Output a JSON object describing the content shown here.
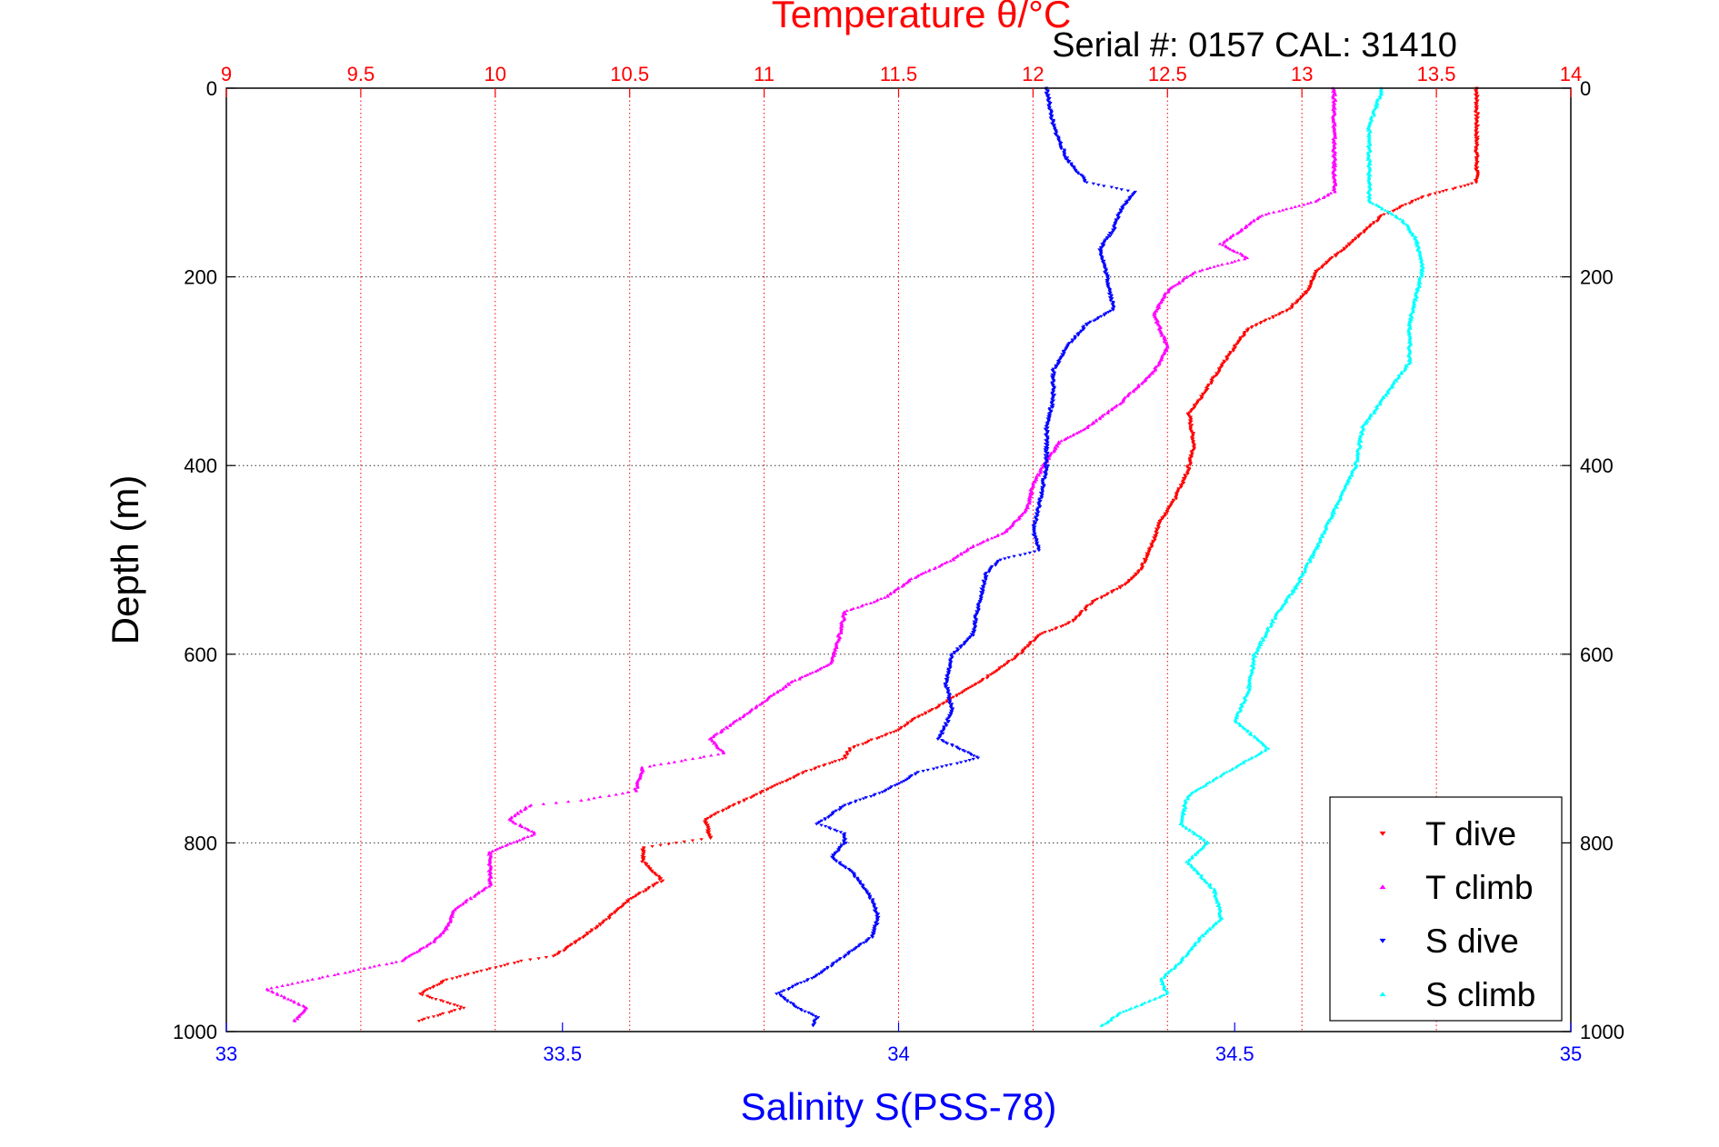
{
  "chart_data": {
    "type": "scatter",
    "title": "Temperature θ/°C",
    "subtitle": "Serial #: 0157  CAL: 31410",
    "ylabel": "Depth (m)",
    "xlabel": "Salinity S(PSS-78)",
    "y": {
      "range": [
        0,
        1000
      ],
      "inverted": true,
      "ticks": [
        0,
        200,
        400,
        600,
        800,
        1000
      ],
      "tick_labels": [
        "0",
        "200",
        "400",
        "600",
        "800",
        "1000"
      ]
    },
    "x_top": {
      "label": "Temperature θ/°C",
      "range": [
        9,
        14
      ],
      "ticks": [
        9,
        9.5,
        10,
        10.5,
        11,
        11.5,
        12,
        12.5,
        13,
        13.5,
        14
      ],
      "tick_labels": [
        "9",
        "9.5",
        "10",
        "10.5",
        "11",
        "11.5",
        "12",
        "12.5",
        "13",
        "13.5",
        "14"
      ],
      "color": "#ff0000",
      "grid": true
    },
    "x_bottom": {
      "label": "Salinity S(PSS-78)",
      "range": [
        33,
        35
      ],
      "ticks": [
        33,
        33.5,
        34,
        34.5,
        35
      ],
      "tick_labels": [
        "33",
        "33.5",
        "34",
        "34.5",
        "35"
      ],
      "color": "#0000ff",
      "grid": false
    },
    "grid": true,
    "legend": {
      "placement": "bottom-right"
    },
    "series": [
      {
        "name": "T dive",
        "axis": "top",
        "marker": "down-triangle",
        "color": "#ff0000",
        "points": [
          [
            13.65,
            0
          ],
          [
            13.65,
            100
          ],
          [
            13.45,
            115
          ],
          [
            13.3,
            135
          ],
          [
            13.2,
            160
          ],
          [
            13.05,
            195
          ],
          [
            13.02,
            215
          ],
          [
            12.95,
            235
          ],
          [
            12.8,
            255
          ],
          [
            12.75,
            275
          ],
          [
            12.7,
            295
          ],
          [
            12.62,
            330
          ],
          [
            12.58,
            345
          ],
          [
            12.6,
            380
          ],
          [
            12.57,
            410
          ],
          [
            12.52,
            440
          ],
          [
            12.47,
            460
          ],
          [
            12.45,
            480
          ],
          [
            12.4,
            510
          ],
          [
            12.35,
            525
          ],
          [
            12.22,
            545
          ],
          [
            12.15,
            565
          ],
          [
            12.02,
            580
          ],
          [
            11.95,
            600
          ],
          [
            11.8,
            630
          ],
          [
            11.65,
            655
          ],
          [
            11.55,
            670
          ],
          [
            11.5,
            680
          ],
          [
            11.32,
            700
          ],
          [
            11.3,
            710
          ],
          [
            11.15,
            725
          ],
          [
            11.0,
            745
          ],
          [
            10.85,
            765
          ],
          [
            10.78,
            775
          ],
          [
            10.8,
            795
          ],
          [
            10.55,
            805
          ],
          [
            10.55,
            820
          ],
          [
            10.62,
            840
          ],
          [
            10.5,
            860
          ],
          [
            10.42,
            880
          ],
          [
            10.3,
            905
          ],
          [
            10.22,
            920
          ],
          [
            10.1,
            925
          ],
          [
            9.82,
            945
          ],
          [
            9.72,
            960
          ],
          [
            9.88,
            975
          ],
          [
            9.7,
            990
          ]
        ]
      },
      {
        "name": "T climb",
        "axis": "top",
        "marker": "up-triangle",
        "color": "#ff00ff",
        "points": [
          [
            13.12,
            0
          ],
          [
            13.12,
            110
          ],
          [
            13.05,
            120
          ],
          [
            12.85,
            135
          ],
          [
            12.7,
            165
          ],
          [
            12.8,
            180
          ],
          [
            12.6,
            195
          ],
          [
            12.5,
            215
          ],
          [
            12.45,
            240
          ],
          [
            12.48,
            260
          ],
          [
            12.5,
            275
          ],
          [
            12.45,
            300
          ],
          [
            12.32,
            335
          ],
          [
            12.2,
            360
          ],
          [
            12.1,
            375
          ],
          [
            12.05,
            395
          ],
          [
            12.0,
            420
          ],
          [
            11.98,
            445
          ],
          [
            11.9,
            470
          ],
          [
            11.78,
            485
          ],
          [
            11.7,
            500
          ],
          [
            11.55,
            520
          ],
          [
            11.45,
            540
          ],
          [
            11.3,
            555
          ],
          [
            11.28,
            580
          ],
          [
            11.25,
            610
          ],
          [
            11.1,
            630
          ],
          [
            11.0,
            650
          ],
          [
            10.9,
            670
          ],
          [
            10.8,
            690
          ],
          [
            10.85,
            705
          ],
          [
            10.55,
            720
          ],
          [
            10.52,
            745
          ],
          [
            10.32,
            755
          ],
          [
            10.13,
            760
          ],
          [
            10.05,
            775
          ],
          [
            10.15,
            790
          ],
          [
            9.98,
            810
          ],
          [
            9.98,
            825
          ],
          [
            9.98,
            845
          ],
          [
            9.85,
            870
          ],
          [
            9.82,
            890
          ],
          [
            9.77,
            905
          ],
          [
            9.65,
            925
          ],
          [
            9.4,
            940
          ],
          [
            9.15,
            955
          ],
          [
            9.3,
            975
          ],
          [
            9.25,
            990
          ]
        ]
      },
      {
        "name": "S dive",
        "axis": "bottom",
        "marker": "down-triangle",
        "color": "#0000ff",
        "points": [
          [
            34.22,
            0
          ],
          [
            34.23,
            40
          ],
          [
            34.25,
            75
          ],
          [
            34.28,
            100
          ],
          [
            34.35,
            110
          ],
          [
            34.33,
            130
          ],
          [
            34.32,
            150
          ],
          [
            34.3,
            170
          ],
          [
            34.31,
            200
          ],
          [
            34.32,
            235
          ],
          [
            34.28,
            250
          ],
          [
            34.25,
            275
          ],
          [
            34.23,
            300
          ],
          [
            34.23,
            330
          ],
          [
            34.22,
            360
          ],
          [
            34.22,
            400
          ],
          [
            34.21,
            440
          ],
          [
            34.2,
            470
          ],
          [
            34.21,
            490
          ],
          [
            34.15,
            500
          ],
          [
            34.13,
            515
          ],
          [
            34.12,
            545
          ],
          [
            34.11,
            580
          ],
          [
            34.08,
            600
          ],
          [
            34.07,
            630
          ],
          [
            34.08,
            660
          ],
          [
            34.06,
            690
          ],
          [
            34.12,
            710
          ],
          [
            34.03,
            725
          ],
          [
            33.98,
            745
          ],
          [
            33.92,
            760
          ],
          [
            33.88,
            780
          ],
          [
            33.92,
            790
          ],
          [
            33.92,
            800
          ],
          [
            33.9,
            815
          ],
          [
            33.93,
            830
          ],
          [
            33.96,
            860
          ],
          [
            33.97,
            880
          ],
          [
            33.96,
            900
          ],
          [
            33.92,
            920
          ],
          [
            33.88,
            940
          ],
          [
            33.82,
            960
          ],
          [
            33.85,
            975
          ],
          [
            33.88,
            985
          ],
          [
            33.87,
            995
          ]
        ]
      },
      {
        "name": "S climb",
        "axis": "bottom",
        "marker": "up-triangle",
        "color": "#00ffff",
        "points": [
          [
            34.72,
            0
          ],
          [
            34.7,
            40
          ],
          [
            34.7,
            90
          ],
          [
            34.7,
            120
          ],
          [
            34.75,
            140
          ],
          [
            34.77,
            160
          ],
          [
            34.78,
            190
          ],
          [
            34.77,
            220
          ],
          [
            34.76,
            250
          ],
          [
            34.76,
            290
          ],
          [
            34.73,
            320
          ],
          [
            34.71,
            340
          ],
          [
            34.69,
            360
          ],
          [
            34.68,
            400
          ],
          [
            34.66,
            430
          ],
          [
            34.64,
            460
          ],
          [
            34.62,
            490
          ],
          [
            34.59,
            530
          ],
          [
            34.56,
            560
          ],
          [
            34.53,
            600
          ],
          [
            34.52,
            640
          ],
          [
            34.5,
            670
          ],
          [
            34.55,
            700
          ],
          [
            34.5,
            720
          ],
          [
            34.43,
            750
          ],
          [
            34.42,
            780
          ],
          [
            34.46,
            800
          ],
          [
            34.43,
            820
          ],
          [
            34.47,
            850
          ],
          [
            34.48,
            880
          ],
          [
            34.45,
            900
          ],
          [
            34.42,
            925
          ],
          [
            34.39,
            945
          ],
          [
            34.4,
            960
          ],
          [
            34.33,
            980
          ],
          [
            34.3,
            995
          ]
        ]
      }
    ]
  }
}
